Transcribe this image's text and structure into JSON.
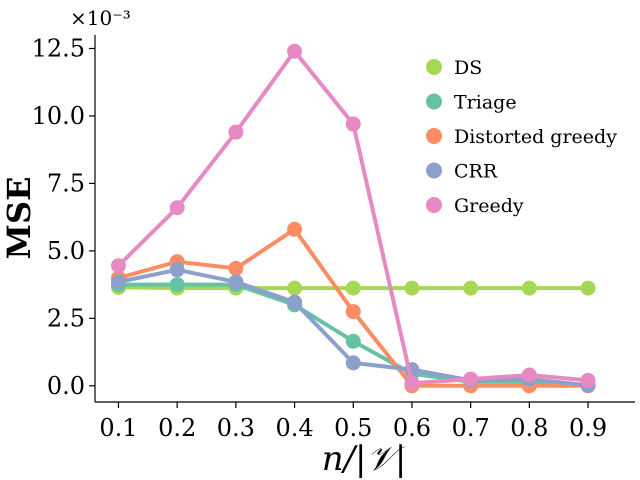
{
  "chart_data": {
    "type": "line",
    "x": [
      0.1,
      0.2,
      0.3,
      0.4,
      0.5,
      0.6,
      0.7,
      0.8,
      0.9
    ],
    "x_tick_labels": [
      "0.1",
      "0.2",
      "0.3",
      "0.4",
      "0.5",
      "0.6",
      "0.7",
      "0.8",
      "0.9"
    ],
    "xlabel": "n/|𝒱|",
    "ylabel": "MSE",
    "y_offset_label": "×10⁻³",
    "ylim": [
      -0.6,
      13.0
    ],
    "y_ticks": [
      0.0,
      2.5,
      5.0,
      7.5,
      10.0,
      12.5
    ],
    "y_tick_labels": [
      "0.0",
      "2.5",
      "5.0",
      "7.5",
      "10.0",
      "12.5"
    ],
    "grid": false,
    "legend_position": "top-right",
    "series": [
      {
        "name": "DS",
        "color": "#a6d854",
        "values": [
          3.65,
          3.62,
          3.62,
          3.62,
          3.62,
          3.62,
          3.62,
          3.62,
          3.62
        ]
      },
      {
        "name": "Triage",
        "color": "#66c2a5",
        "values": [
          3.75,
          3.75,
          3.75,
          3.0,
          1.65,
          0.45,
          0.15,
          0.15,
          0.02
        ]
      },
      {
        "name": "Distorted greedy",
        "color": "#fc8d62",
        "values": [
          4.0,
          4.6,
          4.35,
          5.8,
          2.75,
          0.0,
          0.0,
          0.0,
          0.0
        ]
      },
      {
        "name": "CRR",
        "color": "#8da0cb",
        "values": [
          3.85,
          4.3,
          3.85,
          3.1,
          0.85,
          0.6,
          0.2,
          0.25,
          0.02
        ]
      },
      {
        "name": "Greedy",
        "color": "#e78ac3",
        "values": [
          4.45,
          6.6,
          9.4,
          12.4,
          9.7,
          0.1,
          0.25,
          0.4,
          0.2
        ]
      }
    ]
  }
}
